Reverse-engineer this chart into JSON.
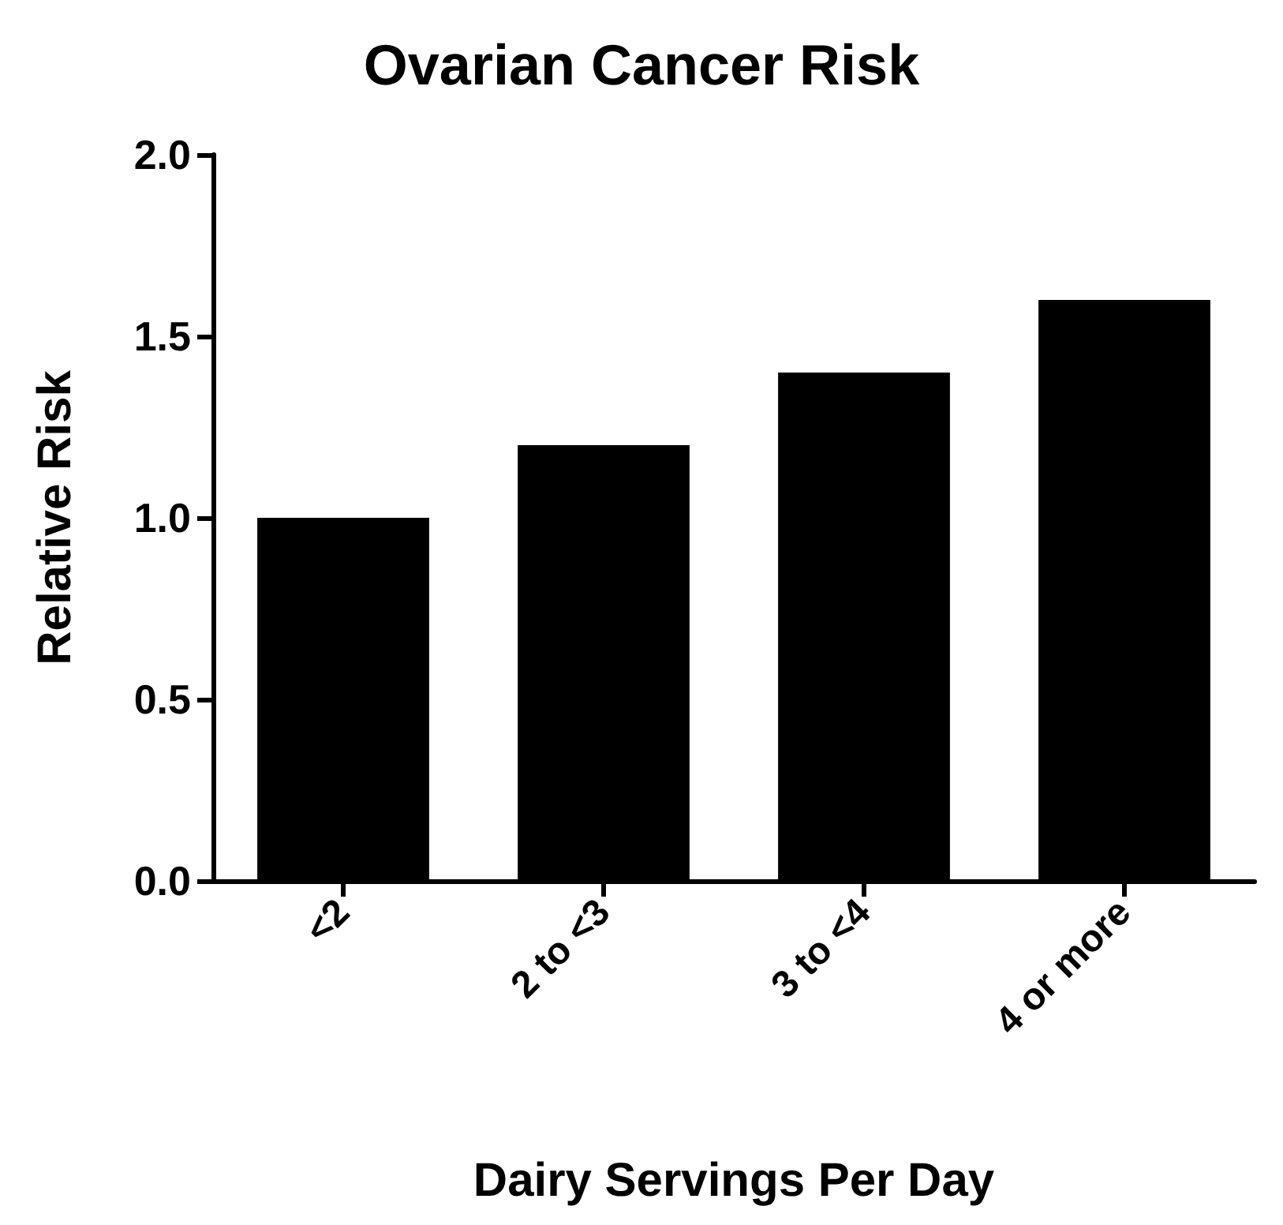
{
  "chart_data": {
    "type": "bar",
    "title": "Ovarian Cancer Risk",
    "xlabel": "Dairy Servings Per Day",
    "ylabel": "Relative Risk",
    "categories": [
      "<2",
      "2 to <3",
      "3 to <4",
      "4 or more"
    ],
    "values": [
      1.0,
      1.2,
      1.4,
      1.6
    ],
    "color": "#000000",
    "ylim": [
      0,
      2
    ],
    "yticks": [
      {
        "value": 0,
        "label": "0.0"
      },
      {
        "value": 0.5,
        "label": "0.5"
      },
      {
        "value": 1,
        "label": "1.0"
      },
      {
        "value": 1.5,
        "label": "1.5"
      },
      {
        "value": 2,
        "label": "2.0"
      }
    ],
    "grid": false
  }
}
